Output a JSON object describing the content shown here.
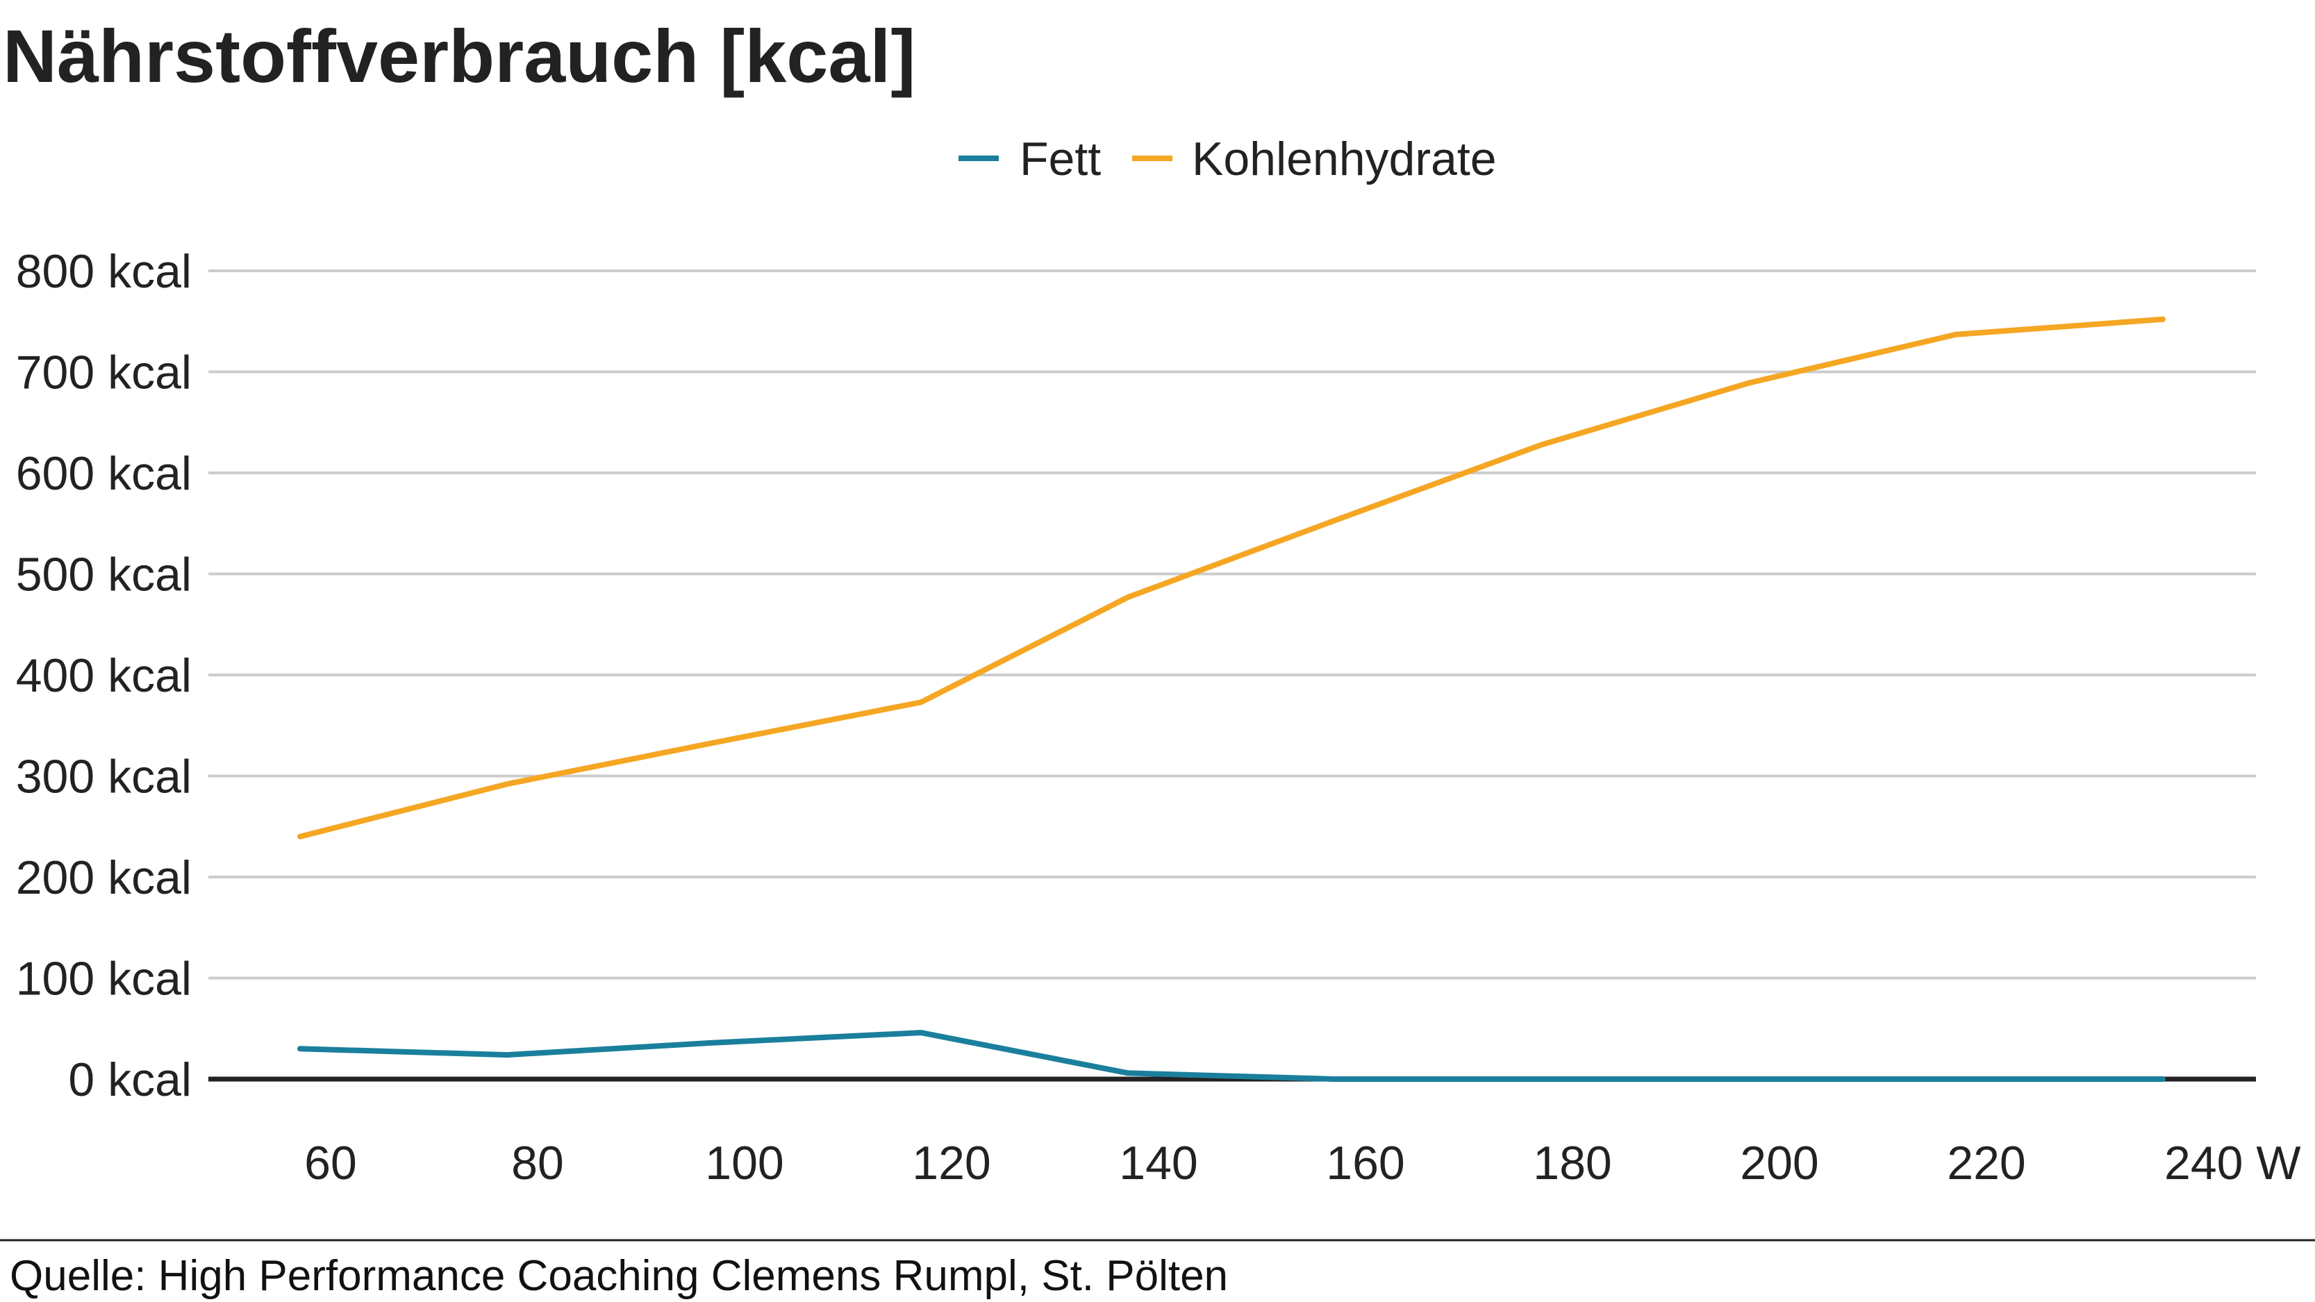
{
  "chart_data": {
    "type": "line",
    "title": "Nährstoffverbrauch [kcal]",
    "x": [
      60,
      80,
      100,
      120,
      140,
      160,
      180,
      200,
      220,
      240
    ],
    "x_tick_labels": [
      "60",
      "80",
      "100",
      "120",
      "140",
      "160",
      "180",
      "200",
      "220",
      "240 W"
    ],
    "y_tick_labels": [
      "0 kcal",
      "100 kcal",
      "200 kcal",
      "300 kcal",
      "400 kcal",
      "500 kcal",
      "600 kcal",
      "700 kcal",
      "800 kcal"
    ],
    "ylim": [
      0,
      800
    ],
    "grid": true,
    "legend_position": "top",
    "series": [
      {
        "name": "Fett",
        "color": "#1a7f9c",
        "values": [
          30,
          24,
          36,
          46,
          6,
          0,
          0,
          0,
          0,
          0
        ]
      },
      {
        "name": "Kohlenhydrate",
        "color": "#f5a623",
        "values": [
          240,
          292,
          333,
          373,
          477,
          553,
          628,
          689,
          737,
          752
        ]
      }
    ],
    "source": "Quelle: High Performance Coaching Clemens Rumpl, St. Pölten"
  }
}
